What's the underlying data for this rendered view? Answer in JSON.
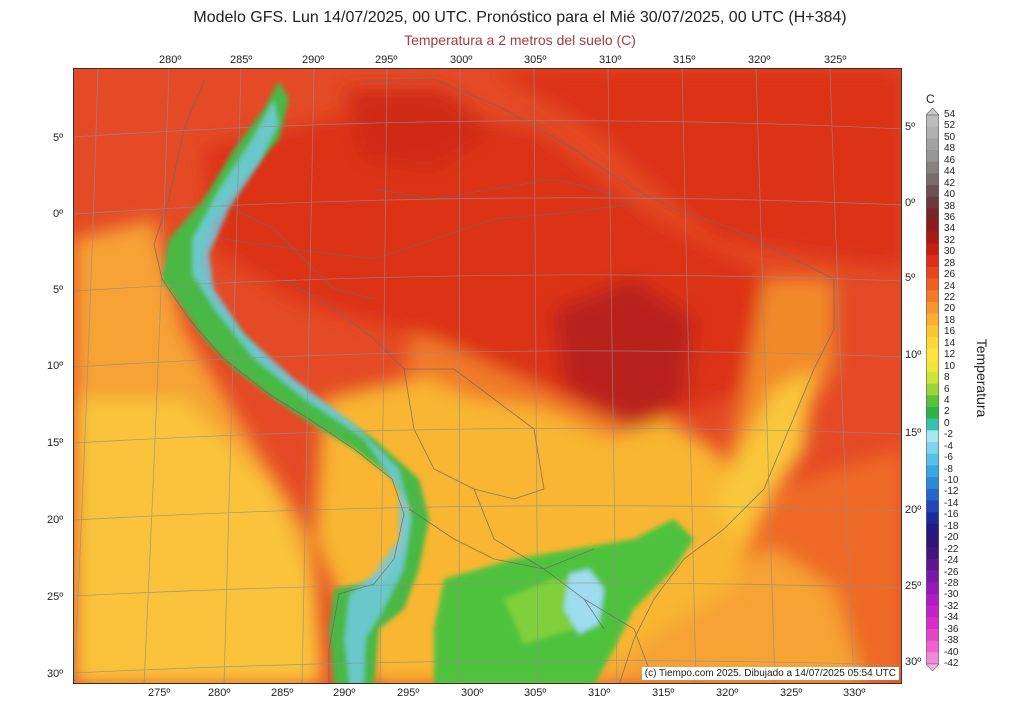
{
  "title": "Modelo GFS. Lun 14/07/2025, 00 UTC. Pronóstico para el Mié 30/07/2025, 00 UTC (H+384)",
  "subtitle": "Temperatura a 2 metros del suelo (C)",
  "credit": "(c) Tiempo.com 2025. Dibujado a 14/07/2025 05:54 UTC",
  "top_longitude_labels": [
    "280º",
    "285º",
    "290º",
    "295º",
    "300º",
    "305º",
    "310º",
    "315º",
    "320º",
    "325º"
  ],
  "bottom_longitude_labels": [
    "275º",
    "280º",
    "285º",
    "290º",
    "295º",
    "300º",
    "305º",
    "310º",
    "315º",
    "320º",
    "325º",
    "330º"
  ],
  "left_latitude_labels": [
    "5º",
    "0º",
    "5º",
    "10º",
    "15º",
    "20º",
    "25º",
    "30º"
  ],
  "right_latitude_labels": [
    "5º",
    "0º",
    "5º",
    "10º",
    "15º",
    "20º",
    "25º",
    "30º"
  ],
  "legend": {
    "unit": "C",
    "title": "Temperatura",
    "values": [
      "54",
      "52",
      "50",
      "48",
      "46",
      "44",
      "42",
      "40",
      "38",
      "36",
      "34",
      "32",
      "30",
      "28",
      "26",
      "24",
      "22",
      "20",
      "18",
      "16",
      "14",
      "12",
      "10",
      "8",
      "6",
      "4",
      "2",
      "0",
      "-2",
      "-4",
      "-6",
      "-8",
      "-10",
      "-12",
      "-14",
      "-16",
      "-18",
      "-20",
      "-22",
      "-24",
      "-26",
      "-28",
      "-30",
      "-32",
      "-34",
      "-36",
      "-38",
      "-40",
      "-42"
    ],
    "colors": [
      "#c8c8c8",
      "#bdbdbd",
      "#b0b0b0",
      "#a2a2a2",
      "#969696",
      "#8a8080",
      "#7a6b6b",
      "#6e5252",
      "#6b3a3a",
      "#7a2525",
      "#8f1c1c",
      "#a81a14",
      "#c51f12",
      "#dc2e16",
      "#e8461c",
      "#ef5f22",
      "#f37a28",
      "#f7962e",
      "#f9b032",
      "#fbc634",
      "#fdd838",
      "#fde442",
      "#f2e63c",
      "#cde23a",
      "#9cd43a",
      "#58c23c",
      "#2db449",
      "#36c3ad",
      "#a8e7f0",
      "#7fd5ec",
      "#58c1e8",
      "#39a8e2",
      "#2c8ad8",
      "#2566c8",
      "#2246b4",
      "#1f2a9a",
      "#241a86",
      "#2f1578",
      "#43147e",
      "#5c1690",
      "#7818a4",
      "#9619b8",
      "#b01bc4",
      "#c620c8",
      "#d82ec8",
      "#e446c8",
      "#ee62cf",
      "#f38ad9",
      "#f8b4e6"
    ]
  },
  "colors": {
    "deep_red": "#b9201c",
    "red": "#dc3318",
    "red_orange": "#e44a25",
    "orange": "#f07529",
    "light_orange": "#f6a236",
    "yellow": "#fbd23c",
    "green": "#4fc23c",
    "cyan": "#69cfe6",
    "grid": "#8f8f8f",
    "border": "#6a6a6a"
  }
}
